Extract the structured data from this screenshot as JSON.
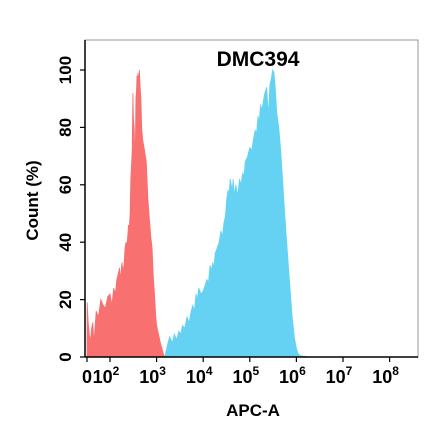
{
  "chart_data": {
    "type": "area",
    "title": "DMC394",
    "xlabel": "APC-A",
    "ylabel": "Count  (%)",
    "x_scale": "biexponential",
    "xlim": [
      0,
      100000000
    ],
    "ylim": [
      0,
      100
    ],
    "x_ticks": [
      {
        "value": 0,
        "base": "0",
        "exp": ""
      },
      {
        "value": 100,
        "base": "10",
        "exp": "2"
      },
      {
        "value": 1000,
        "base": "10",
        "exp": "3"
      },
      {
        "value": 10000,
        "base": "10",
        "exp": "4"
      },
      {
        "value": 100000,
        "base": "10",
        "exp": "5"
      },
      {
        "value": 1000000,
        "base": "10",
        "exp": "6"
      },
      {
        "value": 10000000,
        "base": "10",
        "exp": "7"
      },
      {
        "value": 100000000,
        "base": "10",
        "exp": "8"
      }
    ],
    "y_ticks": [
      0,
      20,
      40,
      60,
      80,
      100
    ],
    "grid": false,
    "legend": "none",
    "series": [
      {
        "color": "#f8706f",
        "points": [
          [
            0,
            0
          ],
          [
            1,
            19
          ],
          [
            5,
            12
          ],
          [
            10,
            8
          ],
          [
            15,
            5
          ],
          [
            20,
            10
          ],
          [
            25,
            12
          ],
          [
            30,
            5
          ],
          [
            40,
            16
          ],
          [
            50,
            14
          ],
          [
            60,
            20
          ],
          [
            70,
            18
          ],
          [
            80,
            17
          ],
          [
            90,
            21
          ],
          [
            100,
            22
          ],
          [
            110,
            18
          ],
          [
            120,
            24
          ],
          [
            130,
            22
          ],
          [
            140,
            27
          ],
          [
            150,
            29
          ],
          [
            160,
            31
          ],
          [
            170,
            27
          ],
          [
            180,
            33
          ],
          [
            190,
            30
          ],
          [
            200,
            32
          ],
          [
            210,
            38
          ],
          [
            220,
            40
          ],
          [
            230,
            39
          ],
          [
            240,
            42
          ],
          [
            250,
            46
          ],
          [
            260,
            45
          ],
          [
            270,
            50
          ],
          [
            280,
            62
          ],
          [
            290,
            67
          ],
          [
            300,
            72
          ],
          [
            310,
            92
          ],
          [
            320,
            83
          ],
          [
            330,
            80
          ],
          [
            340,
            70
          ],
          [
            350,
            75
          ],
          [
            360,
            90
          ],
          [
            370,
            93
          ],
          [
            380,
            98
          ],
          [
            390,
            96
          ],
          [
            400,
            99
          ],
          [
            410,
            98
          ],
          [
            420,
            91
          ],
          [
            430,
            100
          ],
          [
            440,
            95
          ],
          [
            460,
            90
          ],
          [
            480,
            80
          ],
          [
            500,
            76
          ],
          [
            550,
            72
          ],
          [
            600,
            68
          ],
          [
            650,
            55
          ],
          [
            700,
            48
          ],
          [
            750,
            42
          ],
          [
            800,
            38
          ],
          [
            850,
            28
          ],
          [
            900,
            22
          ],
          [
            950,
            15
          ],
          [
            1000,
            11
          ],
          [
            1100,
            8
          ],
          [
            1200,
            5
          ],
          [
            1300,
            3
          ],
          [
            1400,
            1
          ],
          [
            1500,
            0
          ]
        ]
      },
      {
        "color": "#66d2f3",
        "points": [
          [
            1500,
            0
          ],
          [
            1700,
            4
          ],
          [
            1900,
            7
          ],
          [
            2200,
            5
          ],
          [
            2400,
            8
          ],
          [
            2700,
            6
          ],
          [
            3000,
            9
          ],
          [
            3300,
            8
          ],
          [
            3600,
            11
          ],
          [
            4000,
            10
          ],
          [
            4500,
            14
          ],
          [
            5000,
            12
          ],
          [
            5500,
            16
          ],
          [
            6000,
            18
          ],
          [
            6500,
            16
          ],
          [
            7000,
            22
          ],
          [
            7500,
            20
          ],
          [
            8000,
            24
          ],
          [
            9000,
            22
          ],
          [
            10000,
            23
          ],
          [
            11000,
            25
          ],
          [
            12000,
            27
          ],
          [
            13000,
            26
          ],
          [
            14000,
            32
          ],
          [
            15000,
            30
          ],
          [
            16000,
            33
          ],
          [
            17000,
            31
          ],
          [
            18000,
            36
          ],
          [
            20000,
            38
          ],
          [
            22000,
            40
          ],
          [
            24000,
            44
          ],
          [
            26000,
            42
          ],
          [
            28000,
            47
          ],
          [
            30000,
            49
          ],
          [
            32000,
            55
          ],
          [
            34000,
            58
          ],
          [
            36000,
            57
          ],
          [
            38000,
            62
          ],
          [
            40000,
            60
          ],
          [
            42000,
            58
          ],
          [
            44000,
            62
          ],
          [
            47000,
            56
          ],
          [
            50000,
            60
          ],
          [
            55000,
            56
          ],
          [
            60000,
            62
          ],
          [
            65000,
            60
          ],
          [
            70000,
            64
          ],
          [
            75000,
            63
          ],
          [
            80000,
            68
          ],
          [
            90000,
            70
          ],
          [
            100000,
            73
          ],
          [
            110000,
            72
          ],
          [
            120000,
            76
          ],
          [
            130000,
            79
          ],
          [
            140000,
            78
          ],
          [
            150000,
            84
          ],
          [
            160000,
            82
          ],
          [
            170000,
            88
          ],
          [
            180000,
            86
          ],
          [
            190000,
            88
          ],
          [
            200000,
            90
          ],
          [
            210000,
            92
          ],
          [
            230000,
            94
          ],
          [
            250000,
            84
          ],
          [
            270000,
            95
          ],
          [
            290000,
            97
          ],
          [
            310000,
            100
          ],
          [
            330000,
            99
          ],
          [
            350000,
            94
          ],
          [
            380000,
            85
          ],
          [
            420000,
            80
          ],
          [
            460000,
            72
          ],
          [
            500000,
            63
          ],
          [
            560000,
            50
          ],
          [
            620000,
            40
          ],
          [
            700000,
            28
          ],
          [
            800000,
            15
          ],
          [
            900000,
            7
          ],
          [
            1000000,
            3
          ],
          [
            1100000,
            1
          ],
          [
            1200000,
            0.5
          ],
          [
            1400000,
            0.3
          ],
          [
            1600000,
            0.2
          ],
          [
            1800000,
            0
          ]
        ]
      }
    ]
  }
}
